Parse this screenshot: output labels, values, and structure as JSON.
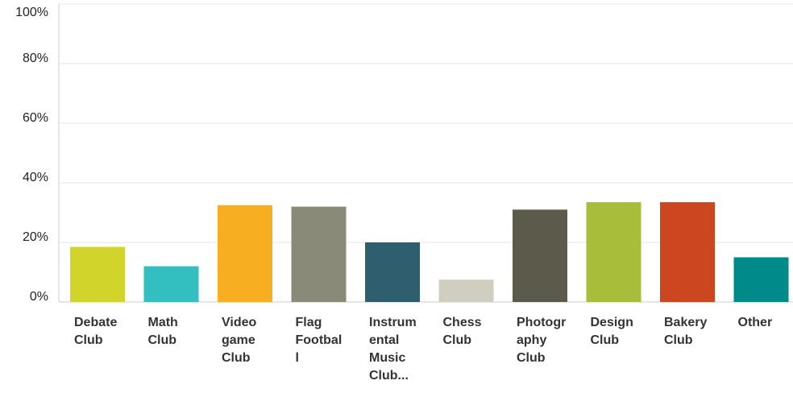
{
  "chart_data": {
    "type": "bar",
    "title": "",
    "xlabel": "",
    "ylabel": "",
    "ylim": [
      0,
      100
    ],
    "yticks": [
      "0%",
      "20%",
      "40%",
      "60%",
      "80%",
      "100%"
    ],
    "grid": true,
    "categories": [
      "Debate\nClub",
      "Math\nClub",
      "Video\ngame\nClub",
      "Flag\nFootbal\nl",
      "Instrum\nental\nMusic\nClub...",
      "Chess\nClub",
      "Photogr\naphy\nClub",
      "Design\nClub",
      "Bakery\nClub",
      "Other"
    ],
    "values": [
      18.5,
      12,
      32.5,
      32,
      20,
      7.5,
      31,
      33.5,
      33.5,
      15
    ],
    "colors": [
      "#d1d52b",
      "#33bec0",
      "#f7ae20",
      "#8a8a78",
      "#2f5f6e",
      "#cfcebf",
      "#5c5a4a",
      "#a8be3a",
      "#cc4620",
      "#008b8b"
    ]
  }
}
